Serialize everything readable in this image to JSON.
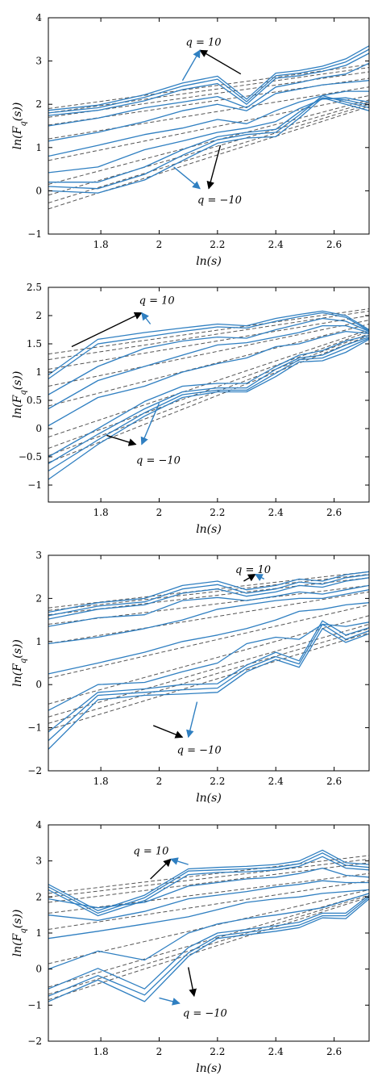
{
  "palette": {
    "series": "#2f7fc1",
    "fit": "#555555",
    "arrow_black": "#000000",
    "arrow_blue": "#2f7fc1"
  },
  "chart_data": [
    {
      "type": "line",
      "xlabel": "ln(s)",
      "ylabel": "ln(Fq(s))",
      "xlim": [
        1.62,
        2.72
      ],
      "ylim": [
        -1,
        4
      ],
      "xticks": [
        1.8,
        2.0,
        2.2,
        2.4,
        2.6
      ],
      "xtick_labels": [
        "1.8",
        "2",
        "2.2",
        "2.4",
        "2.6"
      ],
      "yticks": [
        -1,
        0,
        1,
        2,
        3,
        4
      ],
      "ytick_labels": [
        "−1",
        "0",
        "1",
        "2",
        "3",
        "4"
      ],
      "x": [
        1.62,
        1.79,
        1.95,
        2.08,
        2.2,
        2.3,
        2.4,
        2.48,
        2.56,
        2.64,
        2.72
      ],
      "series": [
        {
          "values": [
            1.86,
            1.98,
            2.22,
            2.49,
            2.65,
            2.12,
            2.72,
            2.78,
            2.88,
            3.05,
            3.35
          ]
        },
        {
          "values": [
            1.8,
            1.92,
            2.16,
            2.42,
            2.58,
            2.06,
            2.66,
            2.72,
            2.82,
            2.98,
            3.27
          ]
        },
        {
          "values": [
            1.74,
            1.86,
            2.08,
            2.34,
            2.48,
            2.0,
            2.6,
            2.66,
            2.76,
            2.9,
            3.18
          ]
        },
        {
          "values": [
            1.5,
            1.68,
            1.92,
            2.05,
            2.18,
            1.92,
            2.4,
            2.5,
            2.62,
            2.7,
            2.95
          ]
        },
        {
          "values": [
            1.15,
            1.35,
            1.6,
            1.85,
            2.0,
            1.85,
            2.25,
            2.35,
            2.45,
            2.5,
            2.55
          ]
        },
        {
          "values": [
            0.8,
            1.05,
            1.3,
            1.45,
            1.65,
            1.55,
            1.85,
            2.05,
            2.2,
            2.3,
            2.3
          ]
        },
        {
          "values": [
            0.42,
            0.55,
            0.95,
            1.15,
            1.35,
            1.45,
            1.6,
            1.9,
            2.12,
            2.15,
            2.05
          ]
        },
        {
          "values": [
            0.2,
            0.2,
            0.55,
            0.95,
            1.25,
            1.35,
            1.42,
            1.82,
            2.15,
            2.1,
            1.98
          ]
        },
        {
          "values": [
            0.1,
            0.05,
            0.38,
            0.82,
            1.18,
            1.3,
            1.35,
            1.75,
            2.2,
            2.05,
            1.92
          ]
        },
        {
          "values": [
            0.0,
            -0.05,
            0.25,
            0.7,
            1.1,
            1.22,
            1.25,
            1.68,
            2.15,
            2.0,
            1.85
          ]
        }
      ],
      "fits": [
        {
          "values": [
            1.9,
            2.92
          ]
        },
        {
          "values": [
            1.8,
            2.85
          ]
        },
        {
          "values": [
            1.7,
            2.75
          ]
        },
        {
          "values": [
            1.52,
            2.6
          ]
        },
        {
          "values": [
            1.2,
            2.4
          ]
        },
        {
          "values": [
            0.7,
            2.2
          ]
        },
        {
          "values": [
            0.15,
            2.1
          ]
        },
        {
          "values": [
            -0.1,
            2.05
          ]
        },
        {
          "values": [
            -0.28,
            2.0
          ]
        },
        {
          "values": [
            -0.42,
            1.95
          ]
        }
      ],
      "annotations": [
        {
          "text": "q = 10",
          "x": 2.13,
          "y": 3.45
        },
        {
          "text": "q = −10",
          "x": 2.17,
          "y": -0.2
        }
      ]
    },
    {
      "type": "line",
      "xlabel": "ln(s)",
      "ylabel": "ln(Fq(s))",
      "xlim": [
        1.62,
        2.72
      ],
      "ylim": [
        -1.3,
        2.5
      ],
      "xticks": [
        1.8,
        2.0,
        2.2,
        2.4,
        2.6
      ],
      "xtick_labels": [
        "1.8",
        "2",
        "2.2",
        "2.4",
        "2.6"
      ],
      "yticks": [
        -1,
        -0.5,
        0,
        0.5,
        1,
        1.5,
        2,
        2.5
      ],
      "ytick_labels": [
        "−1",
        "−0.5",
        "0",
        "0.5",
        "1",
        "1.5",
        "2",
        "2.5"
      ],
      "x": [
        1.62,
        1.79,
        1.95,
        2.08,
        2.2,
        2.3,
        2.4,
        2.48,
        2.56,
        2.64,
        2.72
      ],
      "series": [
        {
          "values": [
            0.95,
            1.58,
            1.7,
            1.78,
            1.85,
            1.82,
            1.95,
            2.02,
            2.08,
            2.0,
            1.75
          ]
        },
        {
          "values": [
            0.88,
            1.5,
            1.62,
            1.72,
            1.8,
            1.78,
            1.9,
            1.98,
            2.05,
            1.97,
            1.73
          ]
        },
        {
          "values": [
            0.6,
            1.1,
            1.42,
            1.55,
            1.62,
            1.6,
            1.75,
            1.85,
            1.95,
            1.9,
            1.72
          ]
        },
        {
          "values": [
            0.35,
            0.85,
            1.1,
            1.3,
            1.48,
            1.52,
            1.62,
            1.7,
            1.82,
            1.82,
            1.7
          ]
        },
        {
          "values": [
            0.05,
            0.55,
            0.75,
            1.0,
            1.15,
            1.25,
            1.45,
            1.5,
            1.62,
            1.72,
            1.68
          ]
        },
        {
          "values": [
            -0.5,
            0.0,
            0.48,
            0.75,
            0.8,
            0.8,
            1.1,
            1.3,
            1.38,
            1.55,
            1.65
          ]
        },
        {
          "values": [
            -0.62,
            -0.1,
            0.35,
            0.65,
            0.72,
            0.72,
            1.05,
            1.25,
            1.3,
            1.48,
            1.62
          ]
        },
        {
          "values": [
            -0.75,
            -0.2,
            0.28,
            0.6,
            0.68,
            0.68,
            0.98,
            1.22,
            1.25,
            1.42,
            1.6
          ]
        },
        {
          "values": [
            -0.9,
            -0.28,
            0.22,
            0.55,
            0.65,
            0.65,
            0.92,
            1.18,
            1.2,
            1.35,
            1.58
          ]
        }
      ],
      "fits": [
        {
          "values": [
            1.32,
            2.12
          ]
        },
        {
          "values": [
            1.22,
            2.08
          ]
        },
        {
          "values": [
            1.05,
            2.0
          ]
        },
        {
          "values": [
            0.75,
            1.92
          ]
        },
        {
          "values": [
            0.4,
            1.85
          ]
        },
        {
          "values": [
            -0.15,
            1.75
          ]
        },
        {
          "values": [
            -0.35,
            1.72
          ]
        },
        {
          "values": [
            -0.48,
            1.68
          ]
        },
        {
          "values": [
            -0.6,
            1.65
          ]
        }
      ],
      "annotations": [
        {
          "text": "q = 10",
          "x": 1.97,
          "y": 2.28
        },
        {
          "text": "q = −10",
          "x": 1.96,
          "y": -0.55
        }
      ]
    },
    {
      "type": "line",
      "xlabel": "ln(s)",
      "ylabel": "ln(Fq(s))",
      "xlim": [
        1.62,
        2.72
      ],
      "ylim": [
        -2,
        3
      ],
      "xticks": [
        1.8,
        2.0,
        2.2,
        2.4,
        2.6
      ],
      "xtick_labels": [
        "1.8",
        "2",
        "2.2",
        "2.4",
        "2.6"
      ],
      "yticks": [
        -2,
        -1,
        0,
        1,
        2,
        3
      ],
      "ytick_labels": [
        "−2",
        "−1",
        "0",
        "1",
        "2",
        "3"
      ],
      "x": [
        1.62,
        1.79,
        1.95,
        2.08,
        2.2,
        2.3,
        2.4,
        2.48,
        2.56,
        2.64,
        2.72
      ],
      "series": [
        {
          "values": [
            1.68,
            1.9,
            2.0,
            2.3,
            2.4,
            2.2,
            2.3,
            2.45,
            2.4,
            2.55,
            2.62
          ]
        },
        {
          "values": [
            1.6,
            1.82,
            1.92,
            2.22,
            2.32,
            2.12,
            2.22,
            2.38,
            2.33,
            2.48,
            2.55
          ]
        },
        {
          "values": [
            1.52,
            1.75,
            1.85,
            2.12,
            2.22,
            2.05,
            2.15,
            2.3,
            2.26,
            2.4,
            2.48
          ]
        },
        {
          "values": [
            1.35,
            1.55,
            1.62,
            1.95,
            2.02,
            1.95,
            2.05,
            2.15,
            2.1,
            2.2,
            2.3
          ]
        },
        {
          "values": [
            0.95,
            1.1,
            1.3,
            1.5,
            1.75,
            1.85,
            1.95,
            2.0,
            2.0,
            2.1,
            2.2
          ]
        },
        {
          "values": [
            0.25,
            0.5,
            0.75,
            1.0,
            1.15,
            1.3,
            1.5,
            1.7,
            1.75,
            1.85,
            1.9
          ]
        },
        {
          "values": [
            -0.6,
            0.0,
            0.05,
            0.3,
            0.5,
            0.95,
            1.1,
            1.05,
            1.4,
            1.35,
            1.45
          ]
        },
        {
          "values": [
            -1.1,
            -0.18,
            -0.1,
            0.0,
            0.02,
            0.45,
            0.75,
            0.55,
            1.48,
            1.15,
            1.32
          ]
        },
        {
          "values": [
            -1.3,
            -0.25,
            -0.18,
            -0.12,
            -0.08,
            0.38,
            0.65,
            0.48,
            1.4,
            1.05,
            1.25
          ]
        },
        {
          "values": [
            -1.5,
            -0.35,
            -0.25,
            -0.22,
            -0.18,
            0.3,
            0.58,
            0.4,
            1.3,
            0.98,
            1.18
          ]
        }
      ],
      "fits": [
        {
          "values": [
            1.78,
            2.62
          ]
        },
        {
          "values": [
            1.72,
            2.56
          ]
        },
        {
          "values": [
            1.62,
            2.48
          ]
        },
        {
          "values": [
            1.4,
            2.3
          ]
        },
        {
          "values": [
            0.95,
            2.15
          ]
        },
        {
          "values": [
            0.15,
            1.85
          ]
        },
        {
          "values": [
            -0.45,
            1.6
          ]
        },
        {
          "values": [
            -0.75,
            1.4
          ]
        },
        {
          "values": [
            -0.9,
            1.3
          ]
        },
        {
          "values": [
            -1.05,
            1.2
          ]
        }
      ],
      "annotations": [
        {
          "text": "q = 10",
          "x": 2.3,
          "y": 2.68
        },
        {
          "text": "q = −10",
          "x": 2.1,
          "y": -1.5
        }
      ]
    },
    {
      "type": "line",
      "xlabel": "ln(s)",
      "ylabel": "ln(Fq(s))",
      "xlim": [
        1.62,
        2.72
      ],
      "ylim": [
        -2,
        4
      ],
      "xticks": [
        1.8,
        2.0,
        2.2,
        2.4,
        2.6
      ],
      "xtick_labels": [
        "1.8",
        "2",
        "2.2",
        "2.4",
        "2.6"
      ],
      "yticks": [
        -2,
        -1,
        0,
        1,
        2,
        3,
        4
      ],
      "ytick_labels": [
        "−2",
        "−1",
        "0",
        "1",
        "2",
        "3",
        "4"
      ],
      "x": [
        1.62,
        1.79,
        1.95,
        2.1,
        2.2,
        2.3,
        2.4,
        2.48,
        2.56,
        2.64,
        2.72
      ],
      "series": [
        {
          "values": [
            2.35,
            1.62,
            2.05,
            2.78,
            2.82,
            2.85,
            2.9,
            3.0,
            3.3,
            2.95,
            2.9
          ]
        },
        {
          "values": [
            2.28,
            1.55,
            1.98,
            2.72,
            2.75,
            2.78,
            2.82,
            2.92,
            3.22,
            2.88,
            2.82
          ]
        },
        {
          "values": [
            2.2,
            1.48,
            1.9,
            2.62,
            2.68,
            2.7,
            2.75,
            2.85,
            3.12,
            2.8,
            2.75
          ]
        },
        {
          "values": [
            1.95,
            1.7,
            1.85,
            2.3,
            2.4,
            2.5,
            2.55,
            2.65,
            2.8,
            2.6,
            2.55
          ]
        },
        {
          "values": [
            1.5,
            1.35,
            1.6,
            1.95,
            2.05,
            2.15,
            2.28,
            2.35,
            2.45,
            2.4,
            2.4
          ]
        },
        {
          "values": [
            0.85,
            1.05,
            1.25,
            1.45,
            1.65,
            1.85,
            1.95,
            2.0,
            2.1,
            2.15,
            2.2
          ]
        },
        {
          "values": [
            0.0,
            0.5,
            0.25,
            1.0,
            1.25,
            1.4,
            1.5,
            1.6,
            1.7,
            1.9,
            2.1
          ]
        },
        {
          "values": [
            -0.55,
            0.02,
            -0.55,
            0.6,
            1.0,
            1.1,
            1.2,
            1.3,
            1.55,
            1.55,
            2.05
          ]
        },
        {
          "values": [
            -0.75,
            -0.18,
            -0.72,
            0.45,
            0.92,
            1.02,
            1.12,
            1.22,
            1.48,
            1.48,
            2.0
          ]
        },
        {
          "values": [
            -0.9,
            -0.3,
            -0.9,
            0.35,
            0.85,
            0.95,
            1.05,
            1.15,
            1.42,
            1.4,
            1.95
          ]
        }
      ],
      "fits": [
        {
          "values": [
            2.1,
            3.15
          ]
        },
        {
          "values": [
            2.0,
            3.05
          ]
        },
        {
          "values": [
            1.85,
            2.95
          ]
        },
        {
          "values": [
            1.55,
            2.65
          ]
        },
        {
          "values": [
            1.1,
            2.45
          ]
        },
        {
          "values": [
            0.15,
            2.2
          ]
        },
        {
          "values": [
            -0.5,
            2.1
          ]
        },
        {
          "values": [
            -0.7,
            2.05
          ]
        },
        {
          "values": [
            -0.85,
            2.0
          ]
        }
      ],
      "annotations": [
        {
          "text": "q = 10",
          "x": 1.95,
          "y": 3.3
        },
        {
          "text": "q = −10",
          "x": 2.12,
          "y": -1.2
        }
      ]
    }
  ]
}
